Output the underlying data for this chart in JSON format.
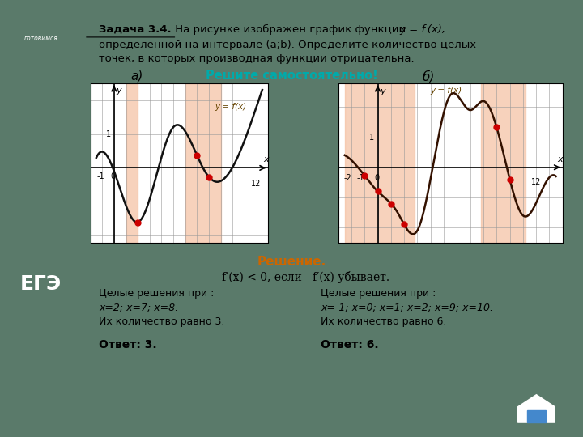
{
  "bg_color": "#5a7a6a",
  "panel_color": "#f5f0e8",
  "title_text": "Задача 3.4.",
  "title_underline": true,
  "problem_text": " На рисунке изображен график функции ",
  "subtitle_a": "а)",
  "subtitle_b": "б)",
  "solve_text": "Решите самостоятельно!",
  "solution_text": "Решение.",
  "orange_shade": "#f5c0a0",
  "grid_color": "#999999",
  "axis_color": "#333333",
  "curve_color_a": "#111111",
  "curve_color_b": "#331100",
  "dot_color": "#cc0000",
  "label_color_a": "#664400",
  "label_color_b": "#664400"
}
